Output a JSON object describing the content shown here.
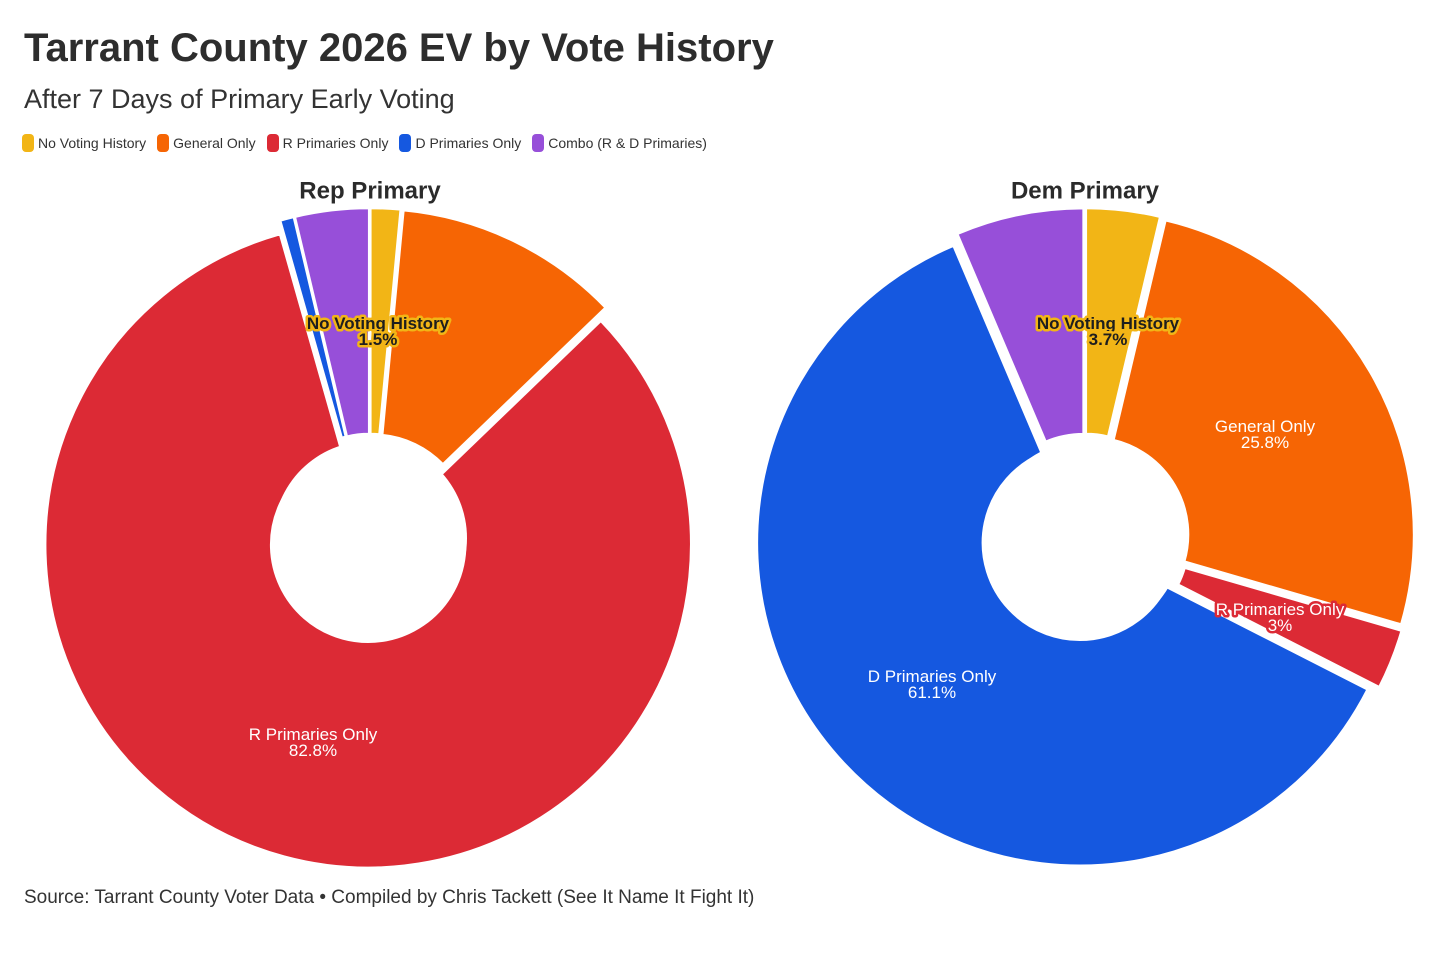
{
  "title": "Tarrant County 2026 EV by Vote History",
  "subtitle": "After 7 Days of Primary Early Voting",
  "legend": [
    {
      "label": "No Voting History",
      "color": "#f2b516"
    },
    {
      "label": "General Only",
      "color": "#f66504"
    },
    {
      "label": "R Primaries Only",
      "color": "#dc2a35"
    },
    {
      "label": "D Primaries Only",
      "color": "#1558e0"
    },
    {
      "label": "Combo (R & D Primaries)",
      "color": "#974fd9"
    }
  ],
  "source": "Source: Tarrant County Voter Data • Compiled by Chris Tackett (See It Name It Fight It)",
  "chart_data": [
    {
      "type": "pie",
      "title": "Rep Primary",
      "categories": [
        "No Voting History",
        "General Only",
        "R Primaries Only",
        "D Primaries Only",
        "Combo (R & D Primaries)"
      ],
      "values": [
        1.5,
        11.3,
        82.8,
        0.7,
        3.7
      ],
      "labels": [
        {
          "name": "No Voting History",
          "value": "1.5%"
        },
        {
          "name": "R Primaries Only",
          "value": "82.8%"
        }
      ]
    },
    {
      "type": "pie",
      "title": "Dem Primary",
      "categories": [
        "No Voting History",
        "General Only",
        "R Primaries Only",
        "D Primaries Only",
        "Combo (R & D Primaries)"
      ],
      "values": [
        3.7,
        25.8,
        3,
        61.1,
        6.4
      ],
      "labels": [
        {
          "name": "No Voting History",
          "value": "3.7%"
        },
        {
          "name": "General Only",
          "value": "25.8%"
        },
        {
          "name": "R Primaries Only",
          "value": "3%"
        },
        {
          "name": "D Primaries Only",
          "value": "61.1%"
        }
      ]
    }
  ]
}
